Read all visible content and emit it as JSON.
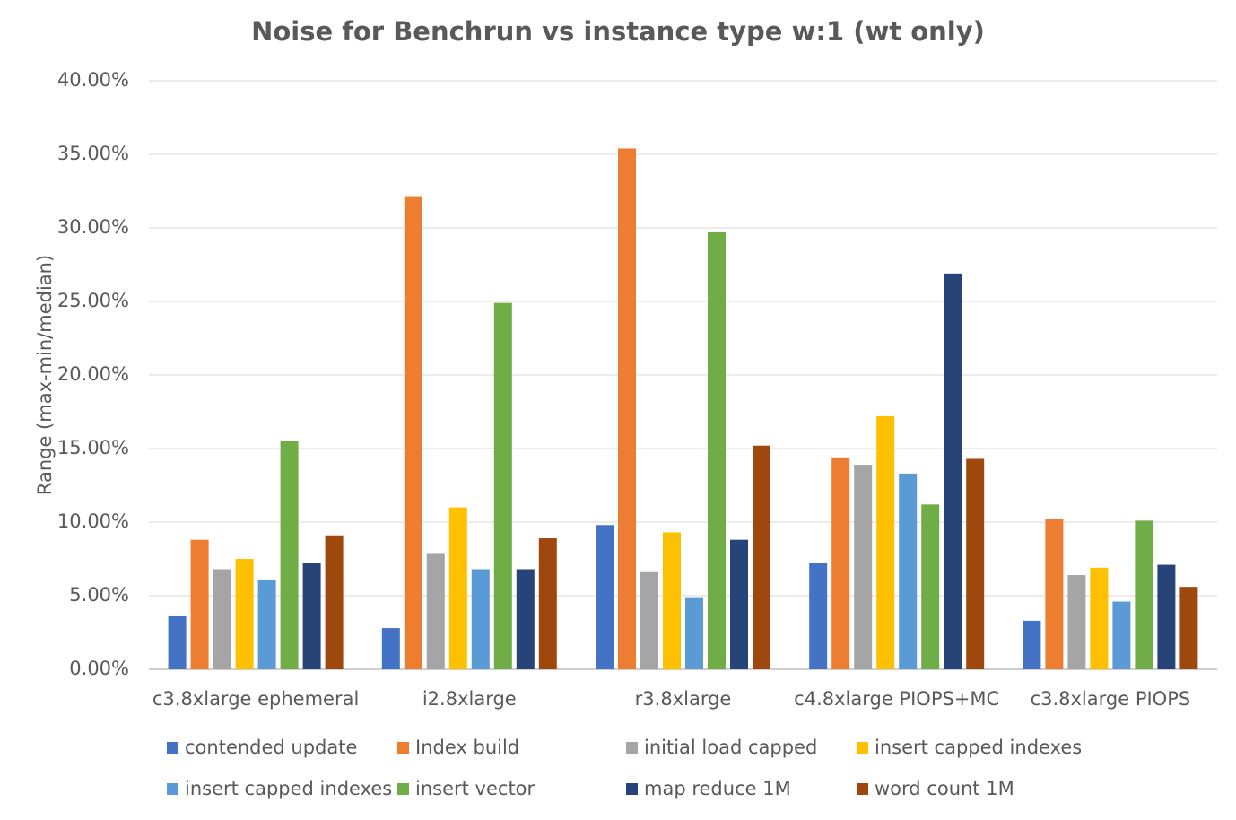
{
  "chart_data": {
    "type": "bar",
    "title": "Noise for Benchrun vs instance type w:1 (wt only)",
    "ylabel": "Range (max-min/median)",
    "xlabel": "",
    "ylim": [
      0,
      40
    ],
    "yticks": [
      "0.00%",
      "5.00%",
      "10.00%",
      "15.00%",
      "20.00%",
      "25.00%",
      "30.00%",
      "35.00%",
      "40.00%"
    ],
    "ytick_values": [
      0,
      5,
      10,
      15,
      20,
      25,
      30,
      35,
      40
    ],
    "grid": true,
    "legend_position": "bottom",
    "categories": [
      "c3.8xlarge ephemeral",
      "i2.8xlarge",
      "r3.8xlarge",
      "c4.8xlarge PIOPS+MC",
      "c3.8xlarge PIOPS"
    ],
    "series": [
      {
        "name": "contended update",
        "color": "#4472C4",
        "values": [
          3.6,
          2.8,
          9.8,
          7.2,
          3.3
        ]
      },
      {
        "name": "Index build",
        "color": "#ED7D31",
        "values": [
          8.8,
          32.1,
          35.4,
          14.4,
          10.2
        ]
      },
      {
        "name": "initial load capped",
        "color": "#A5A5A5",
        "values": [
          6.8,
          7.9,
          6.6,
          13.9,
          6.4
        ]
      },
      {
        "name": "insert capped indexes",
        "color": "#FFC000",
        "values": [
          7.5,
          11.0,
          9.3,
          17.2,
          6.9
        ]
      },
      {
        "name": "insert capped indexes",
        "color": "#5B9BD5",
        "values": [
          6.1,
          6.8,
          4.9,
          13.3,
          4.6
        ]
      },
      {
        "name": "insert vector",
        "color": "#70AD47",
        "values": [
          15.5,
          24.9,
          29.7,
          11.2,
          10.1
        ]
      },
      {
        "name": "map reduce 1M",
        "color": "#264478",
        "values": [
          7.2,
          6.8,
          8.8,
          26.9,
          7.1
        ]
      },
      {
        "name": "word count 1M",
        "color": "#9E480E",
        "values": [
          9.1,
          8.9,
          15.2,
          14.3,
          5.6
        ]
      }
    ]
  }
}
